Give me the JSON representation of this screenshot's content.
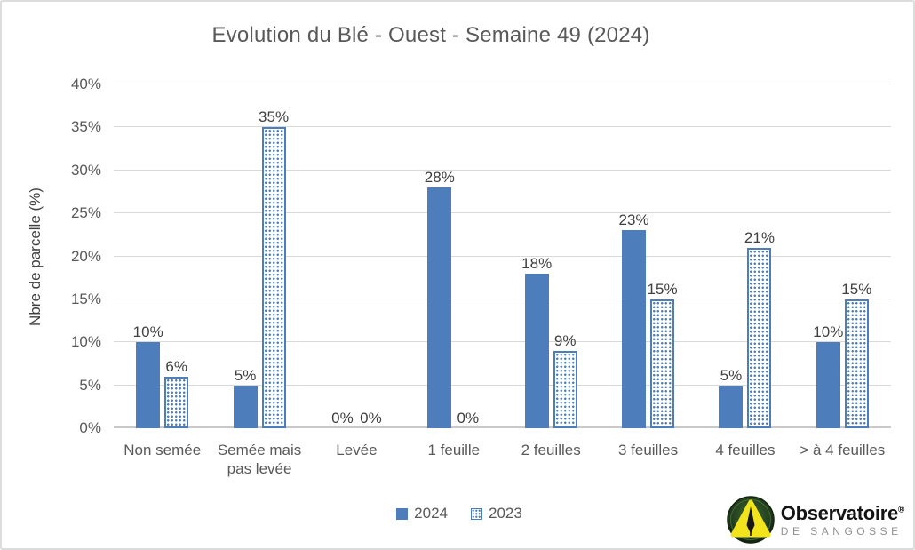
{
  "chart_data": {
    "type": "bar",
    "title": "Evolution du Blé - Ouest - Semaine 49 (2024)",
    "ylabel": "Nbre de parcelle (%)",
    "xlabel": "",
    "categories": [
      "Non semée",
      "Semée mais pas levée",
      "Levée",
      "1 feuille",
      "2 feuilles",
      "3 feuilles",
      "4 feuilles",
      "> à 4 feuilles"
    ],
    "series": [
      {
        "name": "2024",
        "style": "solid",
        "values": [
          10,
          5,
          0,
          28,
          18,
          23,
          5,
          10
        ],
        "labels": [
          "10%",
          "5%",
          "0%",
          "28%",
          "18%",
          "23%",
          "5%",
          "10%"
        ]
      },
      {
        "name": "2023",
        "style": "dotted",
        "values": [
          6,
          35,
          0,
          0,
          9,
          15,
          21,
          15
        ],
        "labels": [
          "6%",
          "35%",
          "0%",
          "0%",
          "9%",
          "15%",
          "21%",
          "15%"
        ]
      }
    ],
    "ylim": [
      0,
      40
    ],
    "ytick_step": 5,
    "ytick_labels": [
      "0%",
      "5%",
      "10%",
      "15%",
      "20%",
      "25%",
      "30%",
      "35%",
      "40%"
    ],
    "grid": true,
    "legend_position": "bottom"
  },
  "legend": {
    "items": [
      {
        "label": "2024",
        "style": "solid"
      },
      {
        "label": "2023",
        "style": "dotted"
      }
    ]
  },
  "logo": {
    "name": "Observatoire",
    "reg": "®",
    "subtitle": "DE SANGOSSE"
  },
  "colors": {
    "bar_accent": "#4d7ebb",
    "grid": "#d9d9d9",
    "axis_text": "#595959",
    "data_label": "#404040",
    "title_text": "#595959",
    "logo_circle": "#24411e",
    "logo_triangle": "#f2e41c"
  }
}
